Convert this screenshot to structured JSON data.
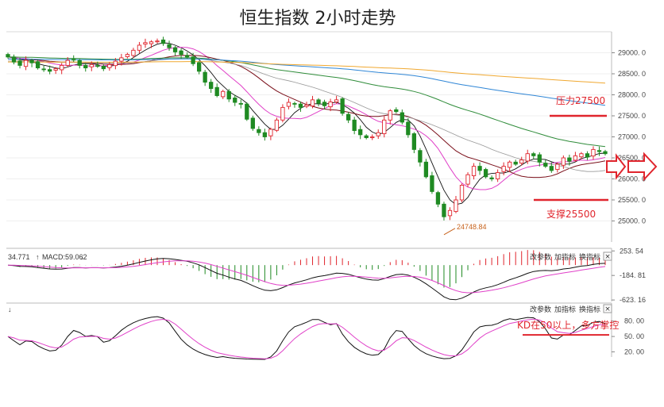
{
  "chart_data": [
    {
      "type": "candlestick",
      "title": "恒生指数 2小时走势",
      "ylim": [
        24500,
        29500
      ],
      "y_ticks": [
        {
          "value": 29000,
          "label": "29000. 0"
        },
        {
          "value": 28500,
          "label": "28500. 0"
        },
        {
          "value": 28000,
          "label": "28000. 0"
        },
        {
          "value": 27500,
          "label": "27500. 0"
        },
        {
          "value": 27000,
          "label": "27000. 0"
        },
        {
          "value": 26500,
          "label": "26500. 0"
        },
        {
          "value": 26000,
          "label": "26000. 0"
        },
        {
          "value": 25500,
          "label": "25500. 0"
        },
        {
          "value": 25000,
          "label": "25000. 0"
        }
      ],
      "close": [
        28900,
        28780,
        28700,
        28820,
        28760,
        28640,
        28600,
        28560,
        28620,
        28700,
        28820,
        28840,
        28700,
        28640,
        28720,
        28680,
        28620,
        28720,
        28800,
        28880,
        28960,
        29060,
        29180,
        29240,
        29260,
        29280,
        29220,
        29120,
        29020,
        28960,
        28900,
        28740,
        28560,
        28300,
        28150,
        27980,
        28080,
        27900,
        27820,
        27780,
        27420,
        27200,
        27100,
        27000,
        27180,
        27400,
        27700,
        27820,
        27780,
        27700,
        27760,
        27880,
        27800,
        27740,
        27830,
        27880,
        27560,
        27400,
        27150,
        27050,
        26980,
        27000,
        27100,
        27400,
        27620,
        27600,
        27350,
        27050,
        26700,
        26400,
        26050,
        25700,
        25400,
        25100,
        25250,
        25500,
        25850,
        26100,
        26300,
        26200,
        26050,
        26000,
        26150,
        26300,
        26400,
        26350,
        26450,
        26600,
        26550,
        26400,
        26300,
        26200,
        26350,
        26500,
        26420,
        26550,
        26600,
        26520,
        26700,
        26650,
        26600
      ],
      "annotations": [
        {
          "text": "压力27500",
          "value": 27500
        },
        {
          "text": "支撑25500",
          "value": 25500
        },
        {
          "text": "24748.84",
          "value": 24748.84
        }
      ]
    },
    {
      "type": "line",
      "name": "MACD",
      "header_left": "34.771",
      "header_macd": "MACD:59.062",
      "y_ticks": [
        {
          "value": 253.54,
          "label": "253. 54"
        },
        {
          "value": -184.81,
          "label": "-184. 81"
        },
        {
          "value": -623.16,
          "label": "-623. 16"
        }
      ],
      "ylim": [
        -650,
        300
      ]
    },
    {
      "type": "line",
      "name": "KD",
      "y_ticks": [
        {
          "value": 80,
          "label": "80. 00"
        },
        {
          "value": 50,
          "label": "50. 00"
        },
        {
          "value": 20,
          "label": "20. 00"
        }
      ],
      "ylim": [
        10,
        95
      ],
      "annotations": [
        {
          "text": "KD在50以上，多方掌控",
          "value": 50
        }
      ]
    }
  ],
  "panel_buttons": {
    "params": "改参数",
    "add_indicator": "加指标",
    "switch_indicator": "换指标",
    "close": "×"
  },
  "colors": {
    "up": "#e0252d",
    "down": "#1f8a22",
    "annotation": "#e0252d",
    "ma_short": "#111111",
    "ma_mid": "#e040c8",
    "ma_long": "#7a0f1a",
    "ma_60": "#2f8c3a",
    "ma_120": "#2f86d6",
    "ma_250": "#f0a830"
  }
}
